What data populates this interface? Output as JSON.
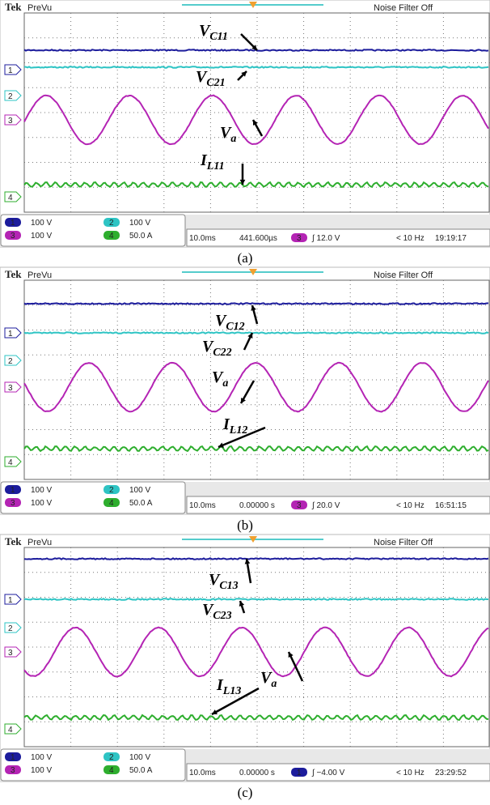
{
  "panels": [
    {
      "header": {
        "brand": "Tek",
        "mode": "PreVu",
        "filter": "Noise Filter Off"
      },
      "channel_markers": [
        "1",
        "2",
        "3",
        "4"
      ],
      "labels": [
        {
          "main": "V",
          "sub": "C11"
        },
        {
          "main": "V",
          "sub": "C21"
        },
        {
          "main": "V",
          "sub": "a"
        },
        {
          "main": "I",
          "sub": "L11"
        }
      ],
      "status": {
        "scales": [
          {
            "ch": "1",
            "scale": "100 V"
          },
          {
            "ch": "2",
            "scale": "100 V"
          },
          {
            "ch": "3",
            "scale": "100 V"
          },
          {
            "ch": "4",
            "scale": "50.0 A"
          }
        ],
        "timebase": "10.0ms",
        "position": "441.600µs",
        "trigger_ch": "3",
        "trigger": "∫ 12.0 V",
        "freq": "< 10 Hz",
        "time": "19:19:17"
      },
      "caption": "(a)"
    },
    {
      "header": {
        "brand": "Tek",
        "mode": "PreVu",
        "filter": "Noise Filter Off"
      },
      "channel_markers": [
        "1",
        "2",
        "3",
        "4"
      ],
      "labels": [
        {
          "main": "V",
          "sub": "C12"
        },
        {
          "main": "V",
          "sub": "C22"
        },
        {
          "main": "V",
          "sub": "a"
        },
        {
          "main": "I",
          "sub": "L12"
        }
      ],
      "status": {
        "scales": [
          {
            "ch": "1",
            "scale": "100 V"
          },
          {
            "ch": "2",
            "scale": "100 V"
          },
          {
            "ch": "3",
            "scale": "100 V"
          },
          {
            "ch": "4",
            "scale": "50.0 A"
          }
        ],
        "timebase": "10.0ms",
        "position": "0.00000 s",
        "trigger_ch": "3",
        "trigger": "∫ 20.0 V",
        "freq": "< 10 Hz",
        "time": "16:51:15"
      },
      "caption": "(b)"
    },
    {
      "header": {
        "brand": "Tek",
        "mode": "PreVu",
        "filter": "Noise Filter Off"
      },
      "channel_markers": [
        "1",
        "2",
        "3",
        "4"
      ],
      "labels": [
        {
          "main": "V",
          "sub": "C13"
        },
        {
          "main": "V",
          "sub": "C23"
        },
        {
          "main": "V",
          "sub": "a"
        },
        {
          "main": "I",
          "sub": "L13"
        }
      ],
      "status": {
        "scales": [
          {
            "ch": "1",
            "scale": "100 V"
          },
          {
            "ch": "2",
            "scale": "100 V"
          },
          {
            "ch": "3",
            "scale": "100 V"
          },
          {
            "ch": "4",
            "scale": "50.0 A"
          }
        ],
        "timebase": "10.0ms",
        "position": "0.00000 s",
        "trigger_ch": "1",
        "trigger": "∫ −4.00 V",
        "freq": "< 10 Hz",
        "time": "23:29:52"
      },
      "caption": "(c)"
    }
  ]
}
